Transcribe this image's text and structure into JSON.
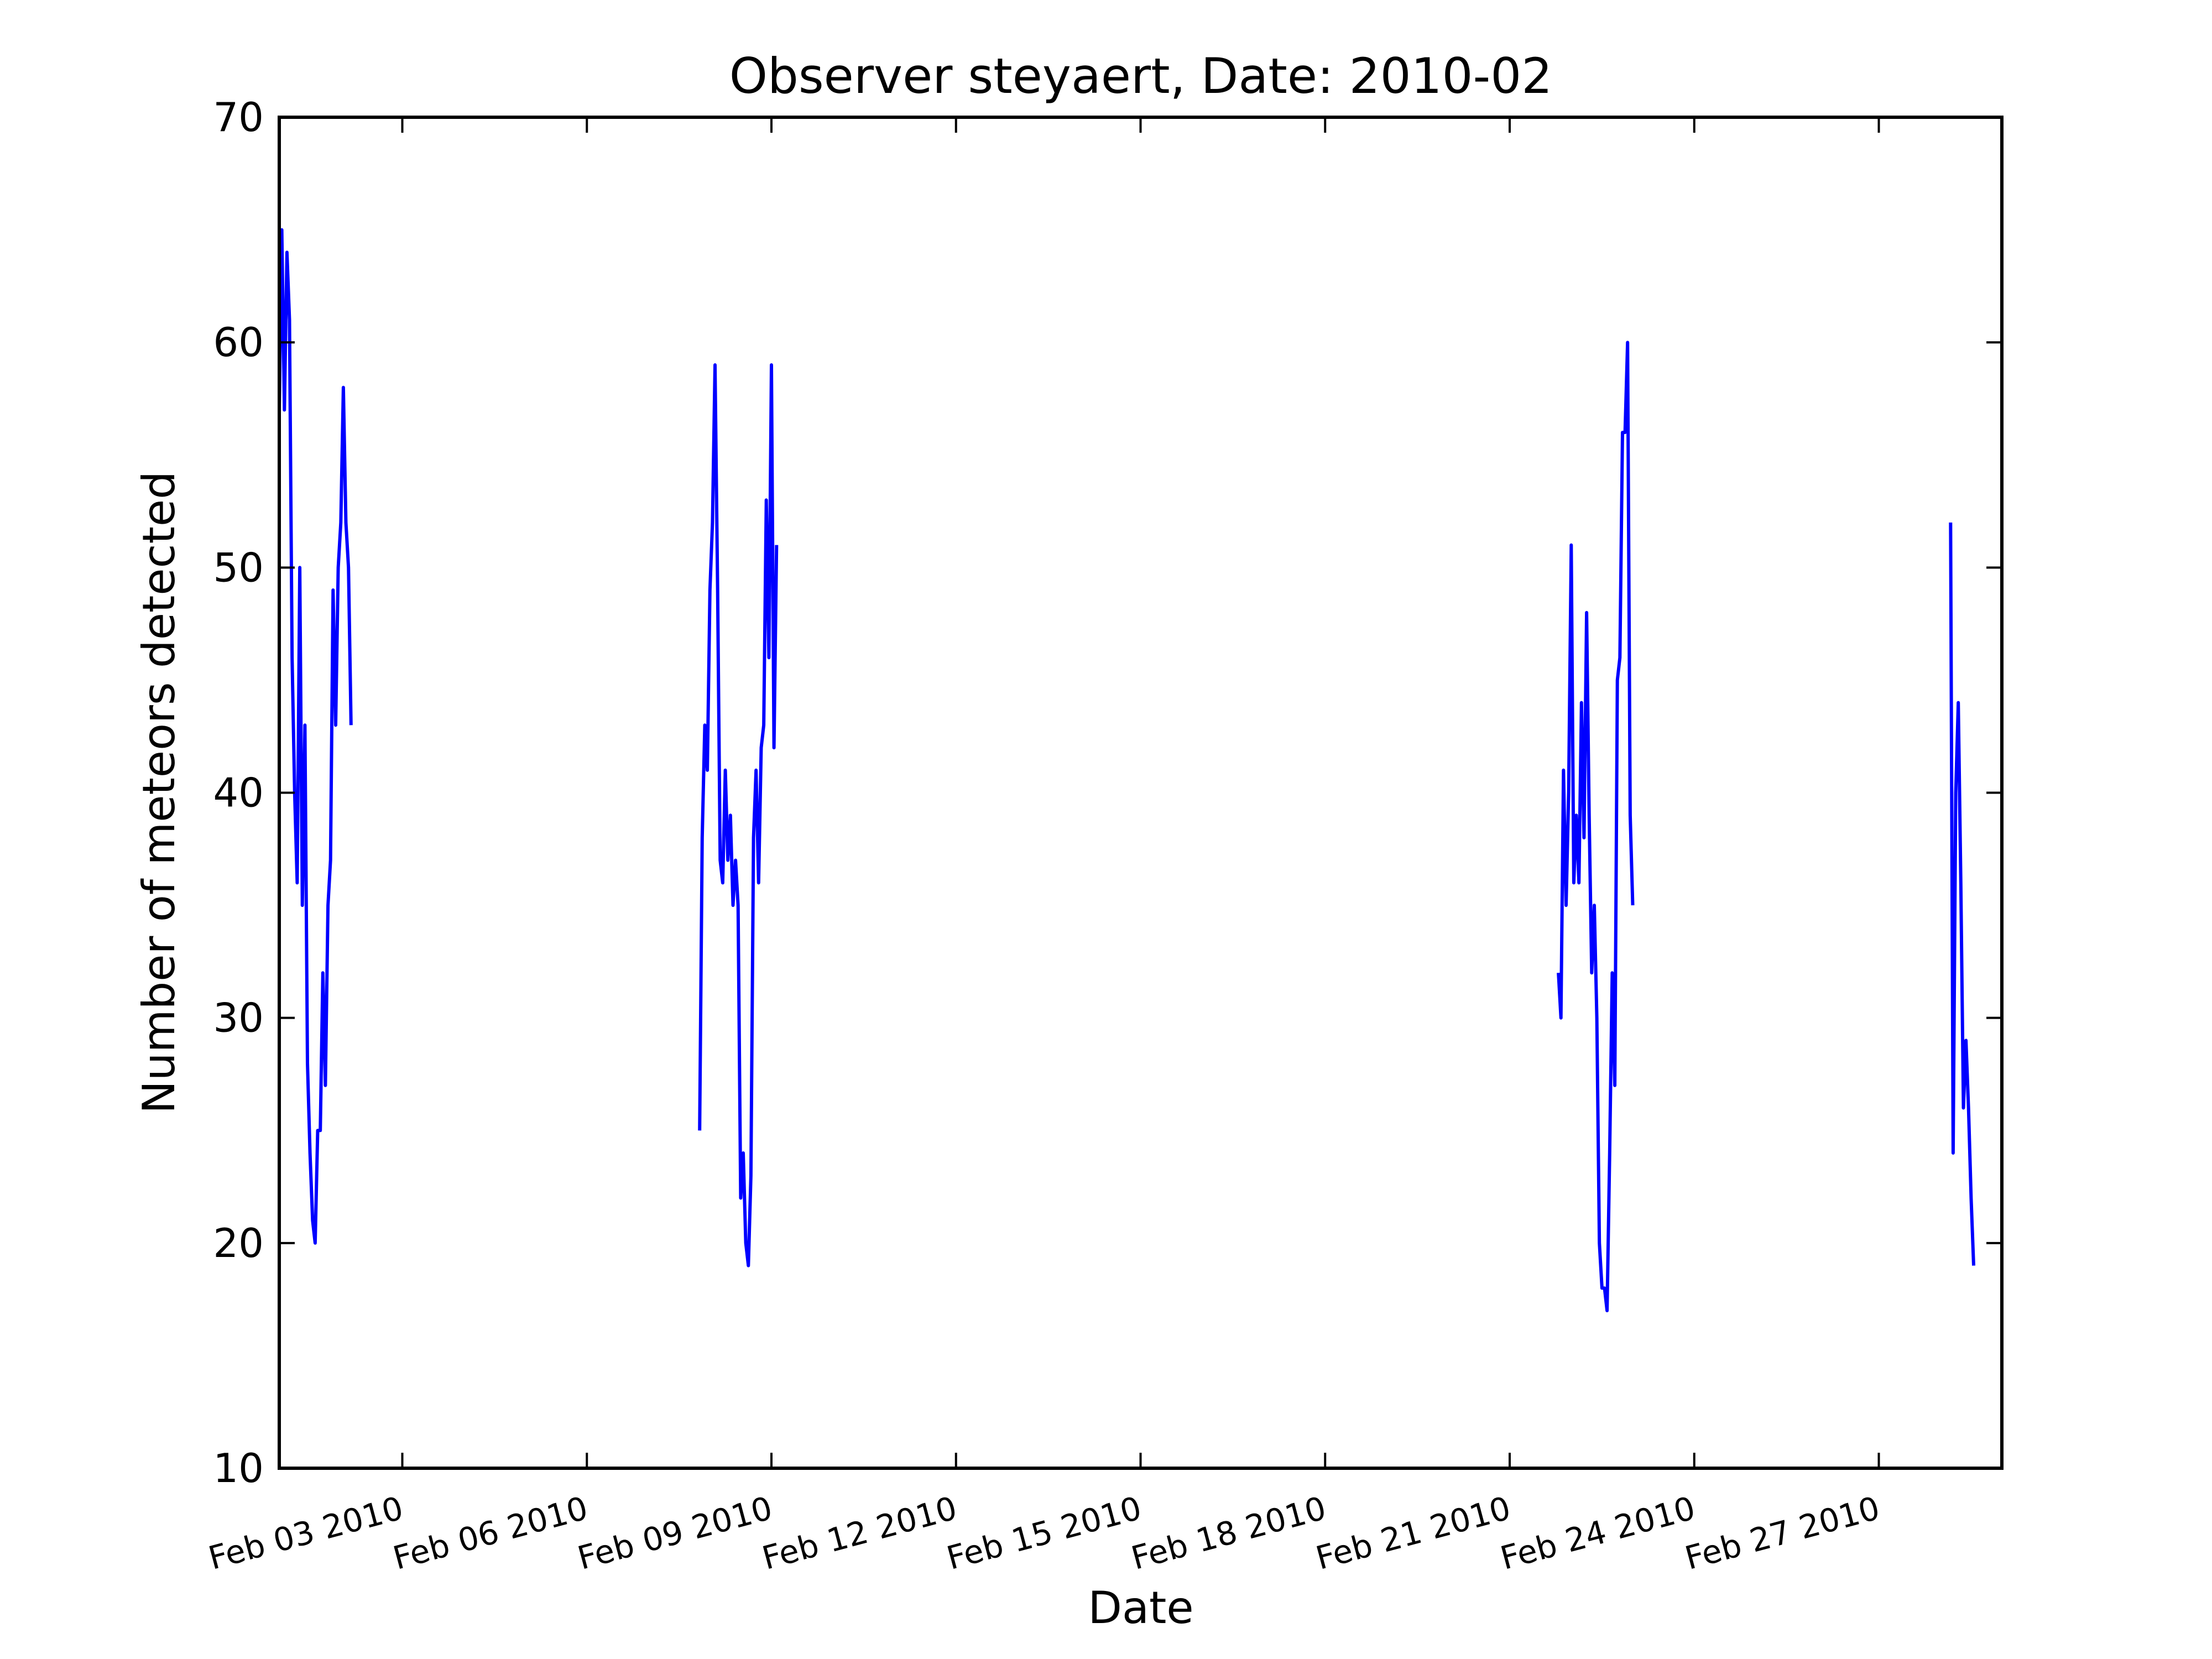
{
  "chart_data": {
    "type": "line",
    "title": "Observer steyaert, Date: 2010-02",
    "xlabel": "Date",
    "ylabel": "Number of meteors detected",
    "xlim": [
      "2010-02-02",
      "2010-03-02"
    ],
    "ylim": [
      10,
      70
    ],
    "grid": false,
    "yticks": [
      {
        "value": 10,
        "label": "10"
      },
      {
        "value": 20,
        "label": "20"
      },
      {
        "value": 30,
        "label": "30"
      },
      {
        "value": 40,
        "label": "40"
      },
      {
        "value": 50,
        "label": "50"
      },
      {
        "value": 60,
        "label": "60"
      },
      {
        "value": 70,
        "label": "70"
      }
    ],
    "xticks": [
      {
        "date": "2010-02-04",
        "label": "Feb 03 2010"
      },
      {
        "date": "2010-02-07",
        "label": "Feb 06 2010"
      },
      {
        "date": "2010-02-10",
        "label": "Feb 09 2010"
      },
      {
        "date": "2010-02-13",
        "label": "Feb 12 2010"
      },
      {
        "date": "2010-02-16",
        "label": "Feb 15 2010"
      },
      {
        "date": "2010-02-19",
        "label": "Feb 18 2010"
      },
      {
        "date": "2010-02-22",
        "label": "Feb 21 2010"
      },
      {
        "date": "2010-02-25",
        "label": "Feb 24 2010"
      },
      {
        "date": "2010-02-28",
        "label": "Feb 27 2010"
      }
    ],
    "series": [
      {
        "color": "#0000ff",
        "segments": [
          {
            "x": [
              "2010-02-02T00:00",
              "2010-02-02T01:00",
              "2010-02-02T02:00",
              "2010-02-02T03:00",
              "2010-02-02T04:00",
              "2010-02-02T05:00",
              "2010-02-02T06:00",
              "2010-02-02T07:00",
              "2010-02-02T08:00",
              "2010-02-02T09:00",
              "2010-02-02T10:00",
              "2010-02-02T11:00",
              "2010-02-02T12:00",
              "2010-02-02T13:00",
              "2010-02-02T14:00",
              "2010-02-02T15:00",
              "2010-02-02T16:00",
              "2010-02-02T17:00",
              "2010-02-02T18:00",
              "2010-02-02T19:00",
              "2010-02-02T20:00",
              "2010-02-02T21:00",
              "2010-02-02T22:00",
              "2010-02-02T23:00",
              "2010-02-03T00:00",
              "2010-02-03T01:00",
              "2010-02-03T02:00",
              "2010-02-03T03:00",
              "2010-02-03T04:00",
              "2010-02-03T05:00",
              "2010-02-03T06:00",
              "2010-02-03T07:00"
            ],
            "y": [
              57,
              65,
              57,
              64,
              61,
              46,
              40,
              36,
              50,
              35,
              43,
              28,
              24,
              21,
              20,
              25,
              25,
              32,
              27,
              35,
              37,
              49,
              43,
              50,
              52,
              58,
              52,
              50,
              43,
              null,
              null,
              null
            ]
          },
          {
            "x": [
              "2010-02-08T20:00",
              "2010-02-08T21:00",
              "2010-02-08T22:00",
              "2010-02-08T23:00",
              "2010-02-09T00:00",
              "2010-02-09T01:00",
              "2010-02-09T02:00",
              "2010-02-09T03:00",
              "2010-02-09T04:00",
              "2010-02-09T05:00",
              "2010-02-09T06:00",
              "2010-02-09T07:00",
              "2010-02-09T08:00",
              "2010-02-09T09:00",
              "2010-02-09T10:00",
              "2010-02-09T11:00",
              "2010-02-09T12:00",
              "2010-02-09T13:00",
              "2010-02-09T14:00",
              "2010-02-09T15:00",
              "2010-02-09T16:00",
              "2010-02-09T17:00",
              "2010-02-09T18:00",
              "2010-02-09T19:00",
              "2010-02-09T20:00",
              "2010-02-09T21:00",
              "2010-02-09T22:00",
              "2010-02-09T23:00",
              "2010-02-10T00:00",
              "2010-02-10T01:00",
              "2010-02-10T02:00",
              "2010-02-10T03:00",
              "2010-02-10T04:00"
            ],
            "y": [
              25,
              38,
              43,
              41,
              49,
              52,
              59,
              49,
              37,
              36,
              41,
              37,
              39,
              35,
              37,
              35,
              22,
              24,
              20,
              19,
              23,
              38,
              41,
              36,
              42,
              43,
              53,
              46,
              59,
              42,
              51,
              null,
              null
            ]
          },
          {
            "x": [
              "2010-02-22T19:00",
              "2010-02-22T20:00",
              "2010-02-22T21:00",
              "2010-02-22T22:00",
              "2010-02-22T23:00",
              "2010-02-23T00:00",
              "2010-02-23T01:00",
              "2010-02-23T02:00",
              "2010-02-23T03:00",
              "2010-02-23T04:00",
              "2010-02-23T05:00",
              "2010-02-23T06:00",
              "2010-02-23T07:00",
              "2010-02-23T08:00",
              "2010-02-23T09:00",
              "2010-02-23T10:00",
              "2010-02-23T11:00",
              "2010-02-23T12:00",
              "2010-02-23T13:00",
              "2010-02-23T14:00",
              "2010-02-23T15:00",
              "2010-02-23T16:00",
              "2010-02-23T17:00",
              "2010-02-23T18:00",
              "2010-02-23T19:00",
              "2010-02-23T20:00",
              "2010-02-23T21:00",
              "2010-02-23T22:00",
              "2010-02-23T23:00",
              "2010-02-24T00:00",
              "2010-02-24T01:00",
              "2010-02-24T02:00"
            ],
            "y": [
              32,
              30,
              41,
              35,
              40,
              51,
              36,
              39,
              36,
              44,
              38,
              48,
              39,
              32,
              35,
              30,
              20,
              18,
              18,
              17,
              24,
              32,
              27,
              45,
              46,
              56,
              56,
              60,
              39,
              35,
              null,
              null
            ]
          },
          {
            "x": [
              "2010-03-01T04:00",
              "2010-03-01T05:00",
              "2010-03-01T06:00",
              "2010-03-01T07:00",
              "2010-03-01T08:00",
              "2010-03-01T09:00",
              "2010-03-01T10:00",
              "2010-03-01T11:00",
              "2010-03-01T12:00",
              "2010-03-01T13:00",
              "2010-03-01T14:00",
              "2010-03-01T15:00",
              "2010-03-01T16:00",
              "2010-03-01T17:00",
              "2010-03-01T18:00",
              "2010-03-01T19:00",
              "2010-03-01T20:00",
              "2010-03-01T21:00",
              "2010-03-01T22:00",
              "2010-03-01T23:00"
            ],
            "y": [
              52,
              24,
              40,
              44,
              36,
              26,
              29,
              26,
              22,
              19,
              null,
              null,
              null,
              null,
              null,
              null,
              null,
              null,
              null,
              null
            ]
          }
        ]
      }
    ]
  }
}
